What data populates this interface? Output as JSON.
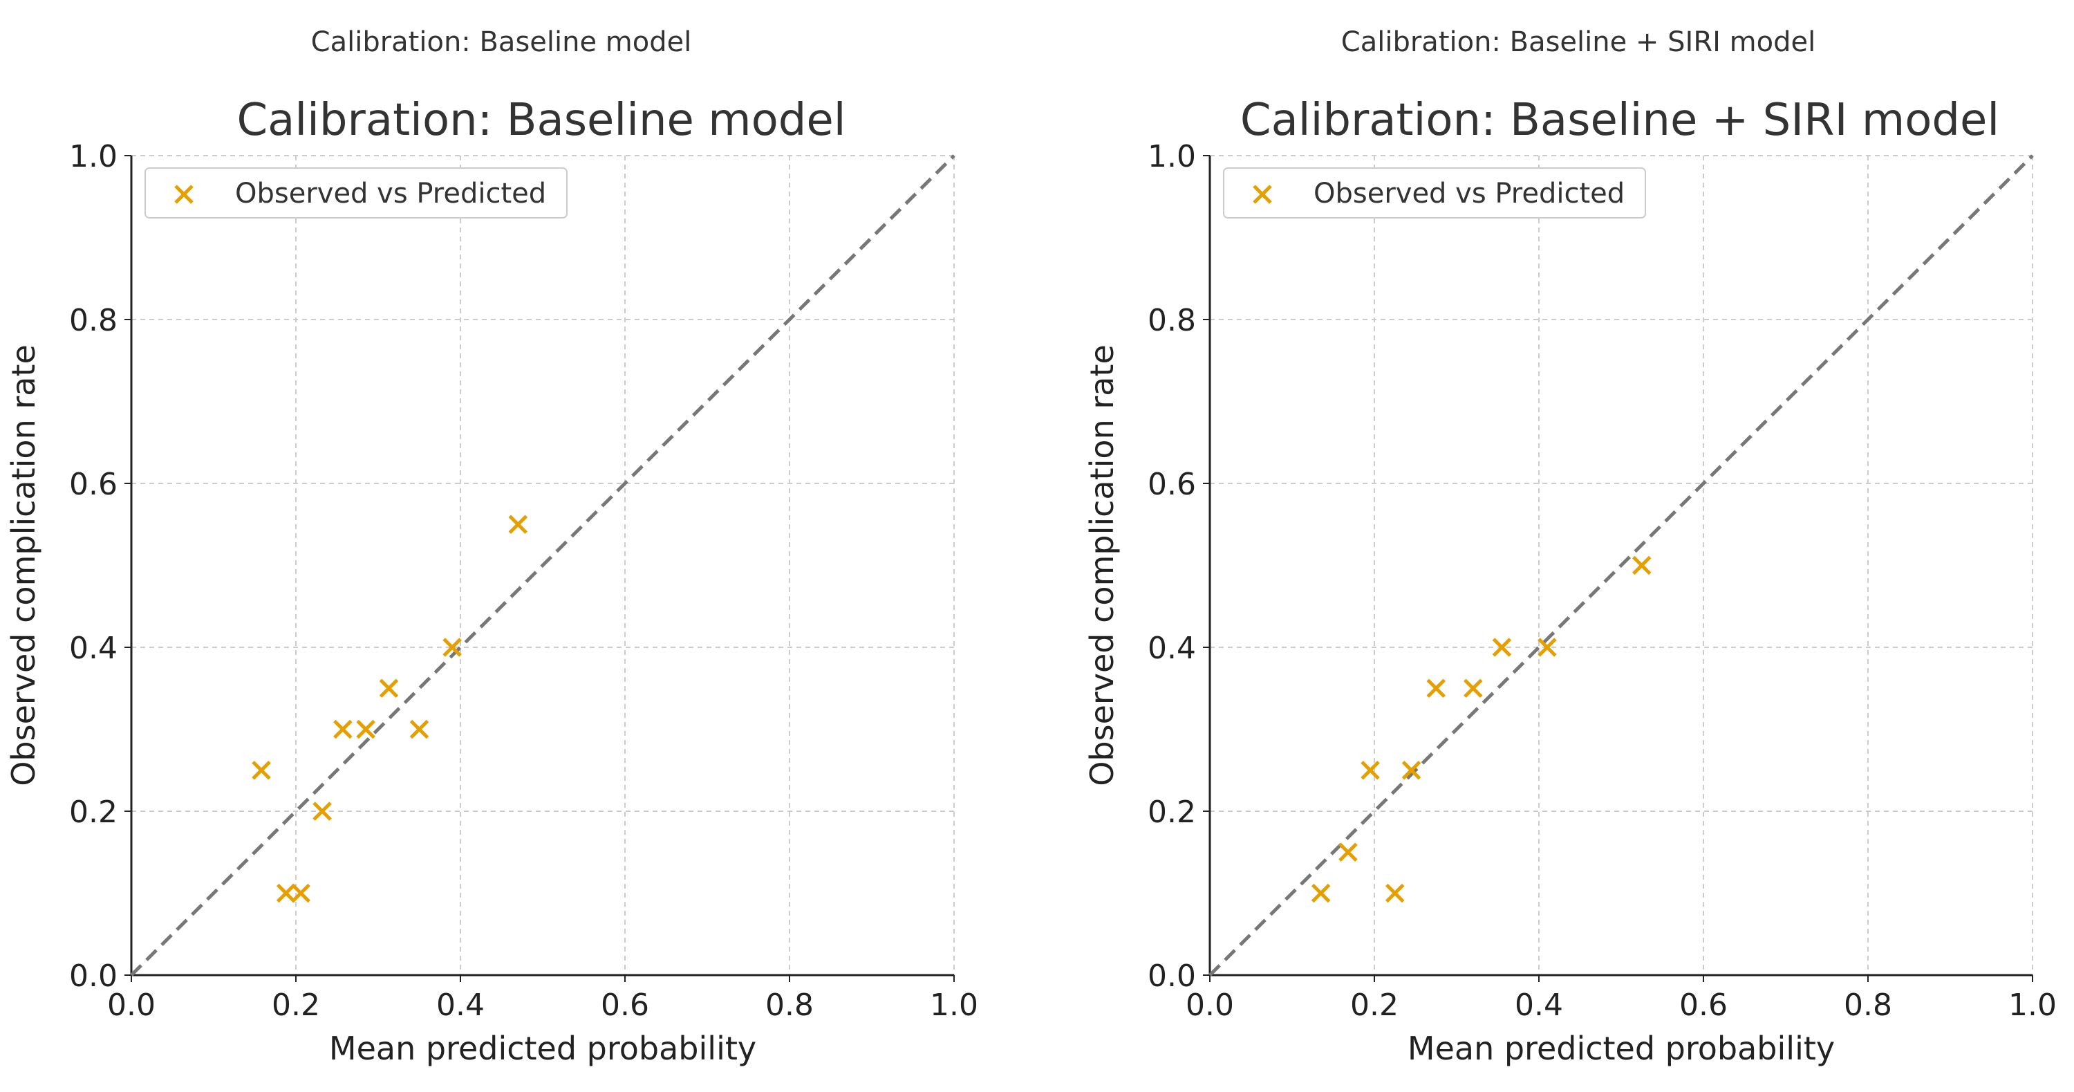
{
  "chart_data": [
    {
      "type": "scatter",
      "header": "Calibration: Baseline model",
      "title": "Calibration: Baseline model",
      "xlabel": "Mean predicted probability",
      "ylabel": "Observed complication rate",
      "xlim": [
        0.0,
        1.0
      ],
      "ylim": [
        0.0,
        1.0
      ],
      "xticks": [
        "0.0",
        "0.2",
        "0.4",
        "0.6",
        "0.8",
        "1.0"
      ],
      "yticks": [
        "0.0",
        "0.2",
        "0.4",
        "0.6",
        "0.8",
        "1.0"
      ],
      "grid": true,
      "legend_position": "top-left",
      "reference_line": "diagonal",
      "marker_color": "#E69F00",
      "reference_color": "#777777",
      "series": [
        {
          "name": "Observed vs Predicted",
          "marker": "x",
          "x": [
            0.158,
            0.188,
            0.206,
            0.232,
            0.257,
            0.285,
            0.313,
            0.35,
            0.39,
            0.47
          ],
          "y": [
            0.25,
            0.1,
            0.1,
            0.2,
            0.3,
            0.3,
            0.35,
            0.3,
            0.4,
            0.55
          ]
        }
      ]
    },
    {
      "type": "scatter",
      "header": "Calibration: Baseline + SIRI model",
      "title": "Calibration: Baseline + SIRI model",
      "xlabel": "Mean predicted probability",
      "ylabel": "Observed complication rate",
      "xlim": [
        0.0,
        1.0
      ],
      "ylim": [
        0.0,
        1.0
      ],
      "xticks": [
        "0.0",
        "0.2",
        "0.4",
        "0.6",
        "0.8",
        "1.0"
      ],
      "yticks": [
        "0.0",
        "0.2",
        "0.4",
        "0.6",
        "0.8",
        "1.0"
      ],
      "grid": true,
      "legend_position": "top-left",
      "reference_line": "diagonal",
      "marker_color": "#E69F00",
      "reference_color": "#777777",
      "series": [
        {
          "name": "Observed vs Predicted",
          "marker": "x",
          "x": [
            0.135,
            0.168,
            0.195,
            0.225,
            0.245,
            0.275,
            0.32,
            0.355,
            0.41,
            0.525
          ],
          "y": [
            0.1,
            0.15,
            0.25,
            0.1,
            0.25,
            0.35,
            0.35,
            0.4,
            0.4,
            0.5
          ]
        }
      ]
    }
  ]
}
